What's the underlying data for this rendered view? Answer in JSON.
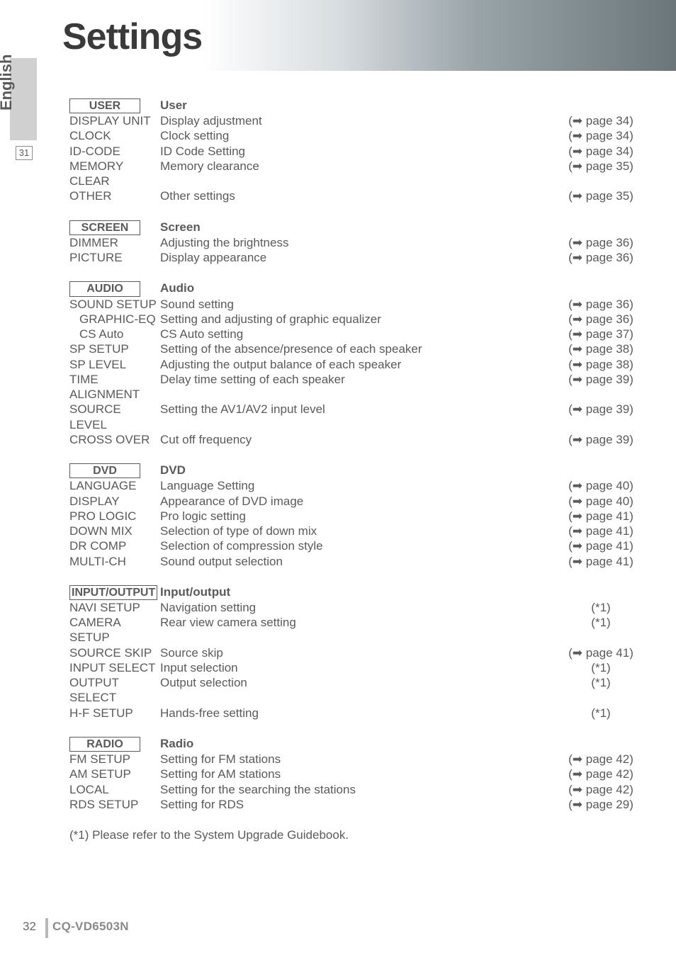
{
  "page": {
    "title": "Settings",
    "side_tab": "English",
    "side_page": "31",
    "footer_page": "32",
    "footer_model": "CQ-VD6503N",
    "footnote": "(*1) Please refer to the System Upgrade Guidebook."
  },
  "sections": [
    {
      "box_label": "USER",
      "title": "User",
      "rows": [
        {
          "left": "DISPLAY UNIT",
          "mid": "Display adjustment",
          "ref": "(➡ page 34)"
        },
        {
          "left": "CLOCK",
          "mid": "Clock setting",
          "ref": "(➡ page 34)"
        },
        {
          "left": "ID-CODE",
          "mid": "ID Code Setting",
          "ref": "(➡ page 34)"
        },
        {
          "left": "MEMORY CLEAR",
          "mid": "Memory clearance",
          "ref": "(➡ page 35)"
        },
        {
          "left": "OTHER",
          "mid": "Other settings",
          "ref": "(➡ page 35)"
        }
      ]
    },
    {
      "box_label": "SCREEN",
      "title": "Screen",
      "rows": [
        {
          "left": "DIMMER",
          "mid": "Adjusting the brightness",
          "ref": "(➡ page 36)"
        },
        {
          "left": "PICTURE",
          "mid": "Display appearance",
          "ref": "(➡ page 36)"
        }
      ]
    },
    {
      "box_label": "AUDIO",
      "title": "Audio",
      "rows": [
        {
          "left": "SOUND SETUP",
          "mid": "Sound setting",
          "ref": "(➡ page 36)"
        },
        {
          "left": "GRAPHIC-EQ",
          "indent": 1,
          "mid": "Setting and adjusting of graphic equalizer",
          "ref": "(➡ page 36)"
        },
        {
          "left": "CS Auto",
          "indent": 1,
          "mid": "CS Auto setting",
          "ref": "(➡ page 37)"
        },
        {
          "left": "SP SETUP",
          "mid": "Setting of the absence/presence of each speaker",
          "ref": "(➡ page 38)"
        },
        {
          "left": "SP LEVEL",
          "mid": "Adjusting the output balance of each speaker",
          "ref": "(➡ page 38)"
        },
        {
          "left": "TIME ALIGNMENT",
          "mid": "Delay time setting of each speaker",
          "ref": "(➡ page 39)"
        },
        {
          "left": "SOURCE LEVEL",
          "mid": "Setting the AV1/AV2 input level",
          "ref": "(➡ page 39)"
        },
        {
          "left": "CROSS OVER",
          "mid": "Cut off frequency",
          "ref": "(➡ page 39)"
        }
      ]
    },
    {
      "box_label": "DVD",
      "title": "DVD",
      "rows": [
        {
          "left": "LANGUAGE",
          "mid": "Language Setting",
          "ref": "(➡ page 40)"
        },
        {
          "left": "DISPLAY",
          "mid": "Appearance of DVD image",
          "ref": "(➡ page 40)"
        },
        {
          "left": "PRO LOGIC",
          "mid": "Pro logic setting",
          "ref": "(➡ page 41)"
        },
        {
          "left": "DOWN MIX",
          "mid": "Selection of  type of down mix",
          "ref": "(➡ page 41)"
        },
        {
          "left": "DR COMP",
          "mid": "Selection of compression style",
          "ref": "(➡ page 41)"
        },
        {
          "left": "MULTI-CH",
          "mid": "Sound output selection",
          "ref": "(➡ page 41)"
        }
      ]
    },
    {
      "box_label": "INPUT/OUTPUT",
      "tight": true,
      "title": "Input/output",
      "rows": [
        {
          "left": "NAVI SETUP",
          "mid": "Navigation setting",
          "ref": "(*1)"
        },
        {
          "left": "CAMERA SETUP",
          "mid": "Rear view camera setting",
          "ref": "(*1)"
        },
        {
          "left": "SOURCE SKIP",
          "mid": "Source skip",
          "ref": "(➡ page 41)"
        },
        {
          "left": "INPUT SELECT",
          "mid": "Input selection",
          "ref": "(*1)"
        },
        {
          "left": "OUTPUT SELECT",
          "mid": "Output selection",
          "ref": "(*1)"
        },
        {
          "left": "H-F SETUP",
          "mid": "Hands-free setting",
          "ref": "(*1)"
        }
      ]
    },
    {
      "box_label": "RADIO",
      "title": "Radio",
      "rows": [
        {
          "left": "FM SETUP",
          "mid": "Setting for FM stations",
          "ref": "(➡ page 42)"
        },
        {
          "left": "AM SETUP",
          "mid": "Setting for AM stations",
          "ref": "(➡ page 42)"
        },
        {
          "left": "LOCAL",
          "mid": "Setting for the searching the stations",
          "ref": "(➡ page 42)"
        },
        {
          "left": "RDS SETUP",
          "mid": "Setting for RDS",
          "ref": "(➡ page 29)"
        }
      ]
    }
  ]
}
